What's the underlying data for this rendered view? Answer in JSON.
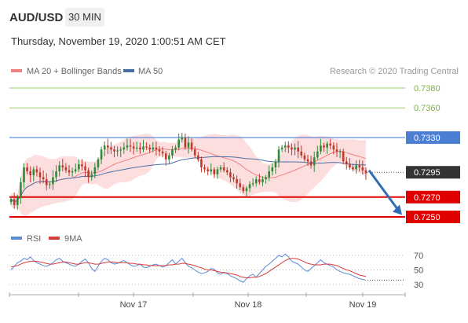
{
  "header": {
    "symbol": "AUD/USD",
    "timeframe": "30 MIN",
    "timestamp": "Thursday, November 19, 2020 1:00:51 AM CET"
  },
  "legend": {
    "ma20": "MA 20 + Bollinger Bands",
    "ma50": "MA 50",
    "credit": "Research © 2020 Trading Central"
  },
  "rsi_legend": {
    "rsi": "RSI",
    "ma9": "9MA"
  },
  "colors": {
    "up_candle": "#2e8b3a",
    "down_candle": "#c0392b",
    "bollinger_fill": "#fbd3d3",
    "ma20": "#f08080",
    "ma50": "#4a6fa5",
    "resistance_blue": "#4a7fd4",
    "target_green": "#9acd6a",
    "support_red": "#e00000",
    "arrow": "#2f6db5",
    "rsi_line": "#5b8ad6",
    "rsi_ma": "#d93a3a"
  },
  "chart_data": {
    "type": "candlestick",
    "ylim": [
      0.7225,
      0.74
    ],
    "levels": [
      {
        "value": "0.7380",
        "kind": "target",
        "color": "#9acd6a"
      },
      {
        "value": "0.7360",
        "kind": "target",
        "color": "#9acd6a"
      },
      {
        "value": "0.7330",
        "kind": "pivot",
        "color": "#4a7fd4"
      },
      {
        "value": "0.7295",
        "kind": "last",
        "color": "#333333"
      },
      {
        "value": "0.7270",
        "kind": "support",
        "color": "#e00000"
      },
      {
        "value": "0.7250",
        "kind": "support",
        "color": "#e00000"
      }
    ],
    "x_ticks": [
      "Nov 17",
      "Nov 18",
      "Nov 19"
    ],
    "price_path": [
      0.7268,
      0.7262,
      0.727,
      0.7285,
      0.73,
      0.7296,
      0.7292,
      0.7298,
      0.7295,
      0.729,
      0.7288,
      0.7282,
      0.7283,
      0.729,
      0.7296,
      0.7302,
      0.73,
      0.7297,
      0.7295,
      0.7296,
      0.7298,
      0.7303,
      0.7301,
      0.7297,
      0.729,
      0.7293,
      0.73,
      0.7308,
      0.7318,
      0.7322,
      0.732,
      0.7318,
      0.7316,
      0.7317,
      0.7318,
      0.732,
      0.7322,
      0.7321,
      0.7319,
      0.732,
      0.7318,
      0.7321,
      0.732,
      0.7318,
      0.732,
      0.7318,
      0.7316,
      0.7314,
      0.7308,
      0.7312,
      0.7318,
      0.732,
      0.7328,
      0.733,
      0.732,
      0.7325,
      0.7318,
      0.7312,
      0.7308,
      0.73,
      0.7298,
      0.7296,
      0.7298,
      0.7293,
      0.7298,
      0.73,
      0.7297,
      0.7295,
      0.729,
      0.7288,
      0.7284,
      0.728,
      0.7276,
      0.7279,
      0.7283,
      0.7284,
      0.7288,
      0.7285,
      0.7288,
      0.729,
      0.7296,
      0.73,
      0.7306,
      0.7318,
      0.732,
      0.7322,
      0.732,
      0.7318,
      0.732,
      0.7316,
      0.7312,
      0.7308,
      0.7306,
      0.7302,
      0.731,
      0.7316,
      0.7322,
      0.732,
      0.7324,
      0.7322,
      0.7318,
      0.7316,
      0.7316,
      0.7306,
      0.7303,
      0.73,
      0.7298,
      0.7302,
      0.73,
      0.7297,
      0.7294
    ],
    "rsi": {
      "levels": [
        70,
        50,
        30
      ],
      "ylim": [
        20,
        80
      ],
      "rsi_path": [
        50,
        55,
        60,
        62,
        66,
        64,
        68,
        63,
        60,
        58,
        56,
        55,
        57,
        60,
        64,
        66,
        62,
        60,
        58,
        56,
        55,
        58,
        62,
        65,
        60,
        52,
        48,
        55,
        62,
        66,
        64,
        60,
        58,
        59,
        61,
        63,
        60,
        57,
        55,
        56,
        58,
        54,
        53,
        55,
        57,
        58,
        56,
        54,
        56,
        60,
        64,
        58,
        62,
        66,
        60,
        55,
        53,
        50,
        47,
        45,
        46,
        48,
        52,
        51,
        46,
        44,
        47,
        45,
        42,
        40,
        38,
        35,
        33,
        38,
        42,
        44,
        40,
        45,
        50,
        55,
        58,
        62,
        66,
        70,
        68,
        72,
        68,
        62,
        60,
        58,
        54,
        50,
        48,
        52,
        56,
        60,
        64,
        60,
        58,
        56,
        54,
        50,
        48,
        46,
        45,
        44,
        42,
        40,
        38,
        37,
        36
      ],
      "ma_path": [
        54,
        55,
        56,
        58,
        60,
        61,
        62,
        62,
        62,
        61,
        60,
        59,
        58,
        58,
        59,
        60,
        61,
        61,
        60,
        59,
        58,
        58,
        59,
        60,
        60,
        59,
        58,
        58,
        59,
        60,
        61,
        61,
        61,
        60,
        60,
        60,
        60,
        59,
        59,
        58,
        58,
        57,
        57,
        56,
        56,
        56,
        56,
        56,
        56,
        57,
        57,
        58,
        58,
        59,
        59,
        58,
        57,
        56,
        54,
        53,
        51,
        50,
        50,
        49,
        48,
        47,
        46,
        46,
        45,
        44,
        43,
        41,
        40,
        39,
        39,
        40,
        40,
        41,
        43,
        45,
        48,
        51,
        54,
        57,
        60,
        63,
        65,
        66,
        66,
        65,
        63,
        61,
        59,
        58,
        57,
        57,
        57,
        58,
        58,
        58,
        57,
        56,
        54,
        52,
        50,
        49,
        47,
        45,
        43,
        42,
        41
      ]
    }
  }
}
